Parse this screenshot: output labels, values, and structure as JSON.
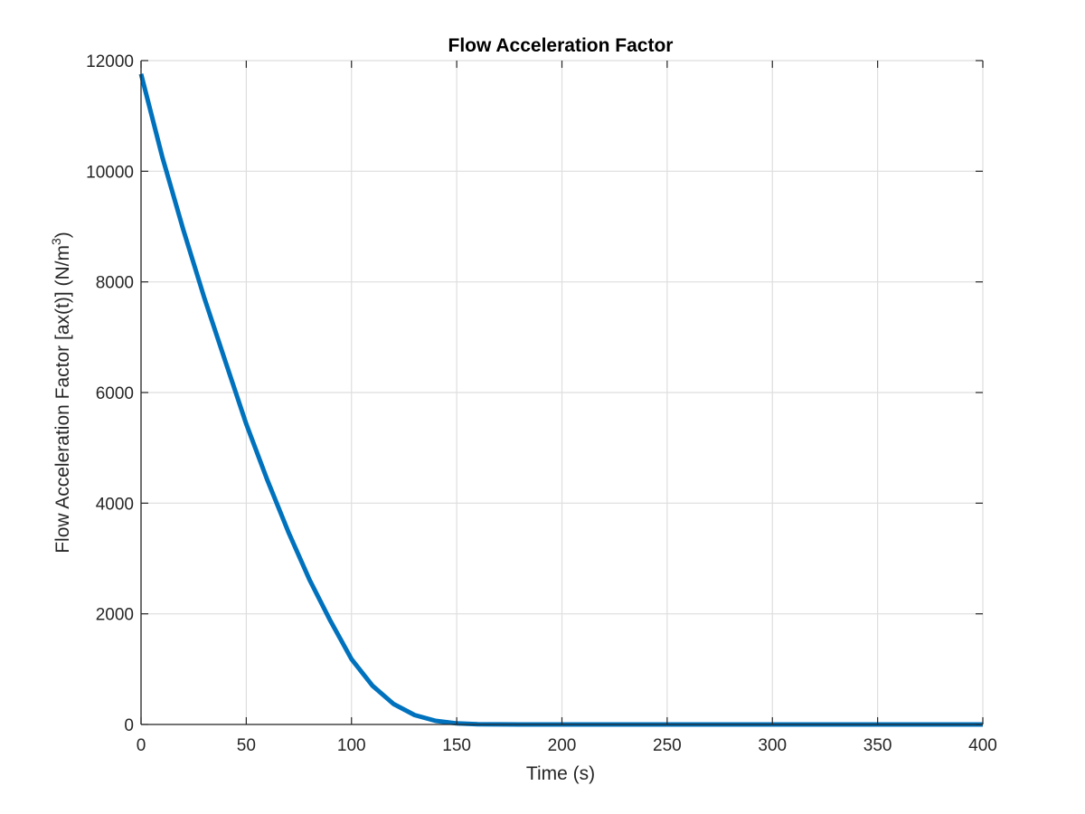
{
  "chart_data": {
    "type": "line",
    "title": "Flow Acceleration Factor",
    "xlabel": "Time (s)",
    "ylabel": {
      "main": "Flow Acceleration Factor [ax(t)] (N/m",
      "superscript": "3",
      "close": ")"
    },
    "xlim": [
      0,
      400
    ],
    "ylim": [
      0,
      12000
    ],
    "xticks": [
      0,
      50,
      100,
      150,
      200,
      250,
      300,
      350,
      400
    ],
    "yticks": [
      0,
      2000,
      4000,
      6000,
      8000,
      10000,
      12000
    ],
    "grid": true,
    "series": [
      {
        "color": "#0072BD",
        "x": [
          0,
          10,
          20,
          30,
          40,
          50,
          60,
          70,
          80,
          90,
          100,
          110,
          120,
          130,
          140,
          150,
          160,
          170,
          180,
          190,
          200,
          250,
          300,
          350,
          400
        ],
        "y": [
          11760,
          10270,
          8950,
          7720,
          6570,
          5430,
          4420,
          3480,
          2620,
          1870,
          1180,
          700,
          370,
          170,
          65,
          20,
          5,
          1,
          0,
          0,
          0,
          0,
          0,
          0,
          0
        ]
      }
    ]
  }
}
